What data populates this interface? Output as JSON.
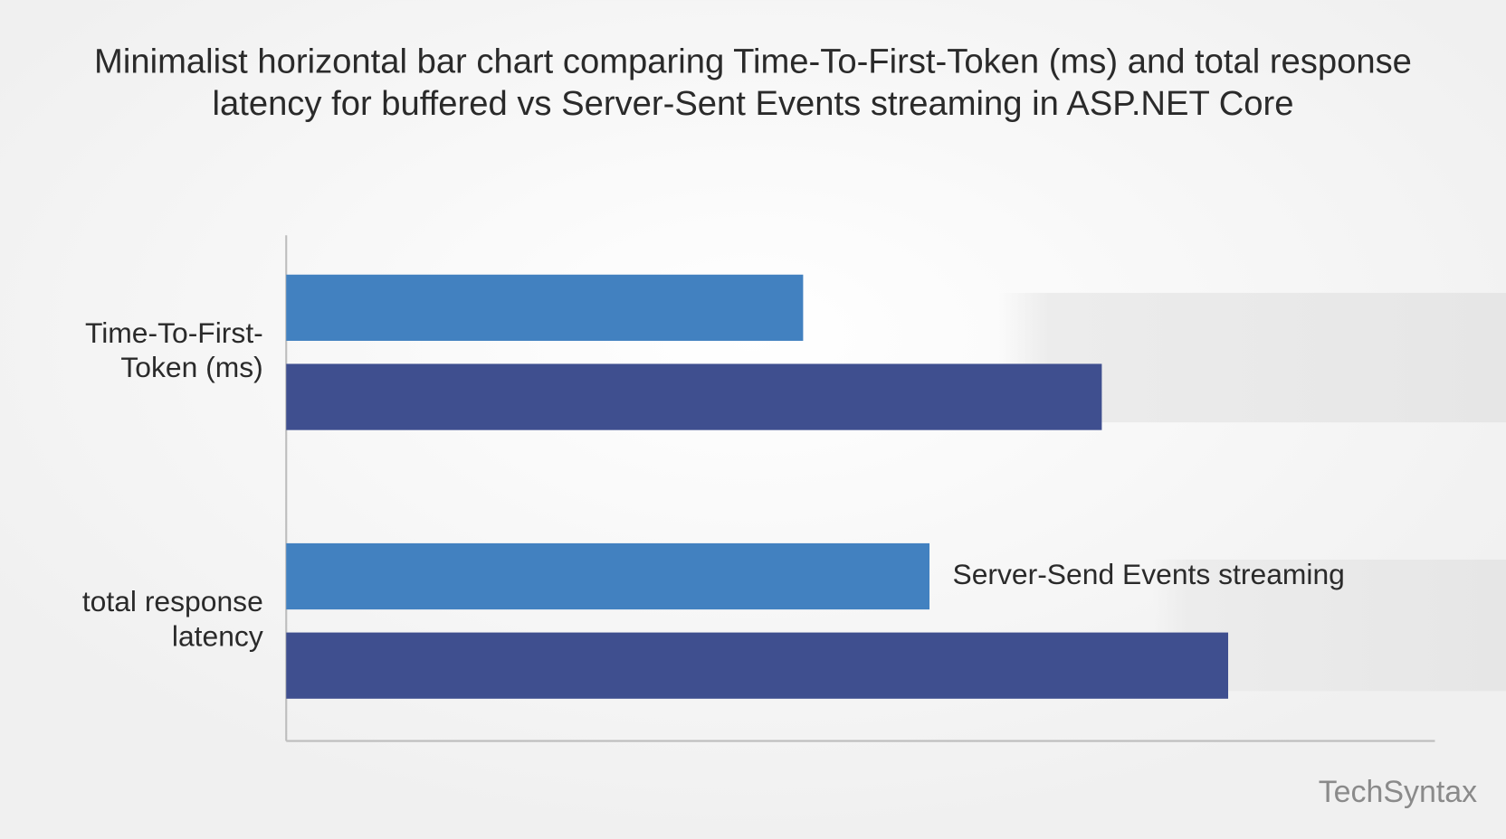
{
  "chart_data": {
    "type": "barh",
    "title": [
      "Minimalist horizontal bar chart comparing Time-To-First-Token (ms) and total response",
      "latency for buffered vs Server-Sent Events streaming in ASP.NET Core"
    ],
    "categories": [
      [
        "Time-To-First-",
        "Token (ms)"
      ],
      [
        "total response",
        "latency"
      ]
    ],
    "series": [
      {
        "name": "Server-Send Events streaming",
        "color": "#4281c0",
        "values": [
          45,
          56
        ]
      },
      {
        "color": "#3f4f8f",
        "values": [
          71,
          82
        ]
      }
    ],
    "xlim": [
      0,
      100
    ],
    "watermark": "TechSyntax"
  }
}
